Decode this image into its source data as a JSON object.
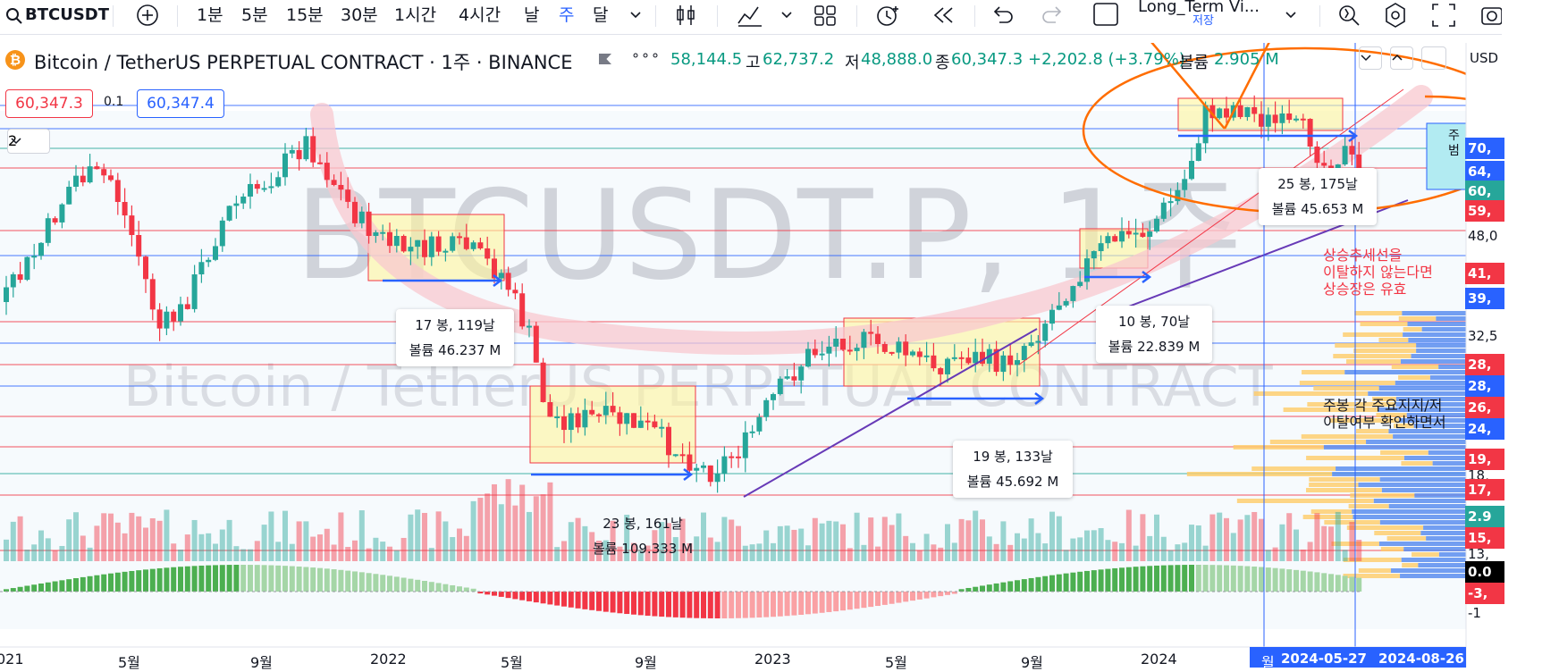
{
  "toolbar": {
    "symbol": "BTCUSDT",
    "intervals": [
      "1분",
      "5분",
      "15분",
      "30분",
      "1시간",
      "4시간",
      "날",
      "주",
      "달"
    ],
    "active_interval": "주",
    "layout_name": "Long_Term Vi...",
    "layout_status": "저장"
  },
  "legend": {
    "title": "Bitcoin / TetherUS PERPETUAL CONTRACT · 1주 · BINANCE",
    "more": "∘∘∘",
    "open_val": "58,144.5",
    "high_lbl": "고",
    "high_val": "62,737.2",
    "low_lbl": "저",
    "low_val": "48,888.0",
    "close_lbl": "종",
    "close_val": "60,347.3",
    "change": "+2,202.8 (+3.79%)",
    "volume_lbl": "볼륨",
    "volume_val": "2.905 M",
    "sell_price": "60,347.3",
    "spread": "0.1",
    "buy_price": "60,347.4",
    "collapse_count": "2"
  },
  "watermark": {
    "big": "BTCUSDT.P, 1주",
    "small": "Bitcoin / TetherUS PERPETUAL CONTRACT"
  },
  "price_scale": {
    "currency": "USD",
    "labels": [
      {
        "text": "70,",
        "color": "#2962ff"
      },
      {
        "text": "64,",
        "color": "#2962ff"
      },
      {
        "text": "60,",
        "color": "#26a69a"
      },
      {
        "text": "59,",
        "color": "#f23645"
      },
      {
        "text": "48,0",
        "color": ""
      },
      {
        "text": "41,",
        "color": "#f23645"
      },
      {
        "text": "39,",
        "color": "#2962ff"
      },
      {
        "text": "32,5",
        "color": ""
      },
      {
        "text": "28,",
        "color": "#f23645"
      },
      {
        "text": "28,",
        "color": "#2962ff"
      },
      {
        "text": "26,",
        "color": "#f23645"
      },
      {
        "text": "24,",
        "color": "#2962ff"
      },
      {
        "text": "19,",
        "color": "#f23645"
      },
      {
        "text": "18,",
        "color": ""
      },
      {
        "text": "17,",
        "color": "#f23645"
      },
      {
        "text": "2.9",
        "color": "#26a69a"
      },
      {
        "text": "15,",
        "color": "#f23645"
      },
      {
        "text": "13,",
        "color": ""
      },
      {
        "text": "0.0",
        "color": "#000000"
      },
      {
        "text": "-3,",
        "color": "#f23645"
      },
      {
        "text": "-1",
        "color": ""
      }
    ]
  },
  "time_axis": {
    "labels": [
      "021",
      "5월",
      "9월",
      "2022",
      "5월",
      "9월",
      "2023",
      "5월",
      "9월",
      "2024"
    ],
    "highlight_month": "월",
    "highlight_start": "2024-05-27",
    "highlight_end": "2024-08-26"
  },
  "ranges": [
    {
      "line1": "17 봉, 119날",
      "line2": "볼륨 46.237 M"
    },
    {
      "line1": "23 봉, 161날",
      "line2": "볼륨 109.333 M"
    },
    {
      "line1": "19 봉, 133날",
      "line2": "볼륨 45.692 M"
    },
    {
      "line1": "10 봉, 70날",
      "line2": "볼륨 22.839 M"
    },
    {
      "line1": "25 봉, 175날",
      "line2": "볼륨 45.653 M"
    }
  ],
  "annotations": {
    "trend_note": [
      "상승추세선을",
      "이탈하지 않는다면",
      "상승장은 유효"
    ],
    "support_note": [
      "주봉 각 주요지지/저",
      "이탈여부 확인하면서"
    ],
    "side_note": [
      "주",
      "범"
    ]
  },
  "colors": {
    "up": "#26a69a",
    "down": "#f23645",
    "accent": "#2962ff",
    "range_fill": "#fff59d",
    "trendline": "#673ab7",
    "marker": "#ff6d00"
  }
}
